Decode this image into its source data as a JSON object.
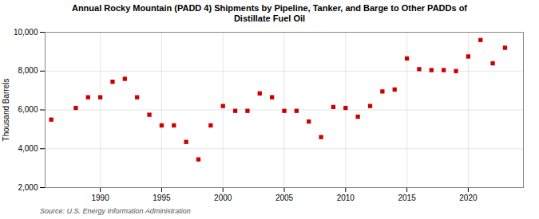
{
  "chart_data": {
    "type": "scatter",
    "title": "Annual Rocky Mountain (PADD 4) Shipments by Pipeline, Tanker, and Barge to Other PADDs of\nDistillate Fuel Oil",
    "ylabel": "Thousand Barrels",
    "source": "Source: U.S. Energy Information Administration",
    "x": [
      1986,
      1988,
      1989,
      1990,
      1991,
      1992,
      1993,
      1994,
      1995,
      1996,
      1997,
      1998,
      1999,
      2000,
      2001,
      2002,
      2003,
      2004,
      2005,
      2006,
      2007,
      2008,
      2009,
      2010,
      2011,
      2012,
      2013,
      2014,
      2015,
      2016,
      2017,
      2018,
      2019,
      2020,
      2021,
      2022,
      2023
    ],
    "values": [
      5500,
      6100,
      6650,
      6650,
      7450,
      7600,
      6650,
      5750,
      5200,
      5200,
      4350,
      3450,
      5200,
      6200,
      5950,
      5950,
      6850,
      6650,
      5950,
      5950,
      5400,
      4600,
      6150,
      6100,
      5650,
      6200,
      6950,
      7050,
      8650,
      8100,
      8050,
      8050,
      8000,
      8750,
      9600,
      8400,
      9200
    ],
    "color": "#cc0000",
    "marker": "square",
    "xlim": [
      1985.5,
      2024.5
    ],
    "xticks": [
      1990,
      1995,
      2000,
      2005,
      2010,
      2015,
      2020
    ],
    "ylim": [
      2000,
      10000
    ],
    "yticks": [
      {
        "value": 2000,
        "label": "2,000"
      },
      {
        "value": 4000,
        "label": "4,000"
      },
      {
        "value": 6000,
        "label": "6,000"
      },
      {
        "value": 8000,
        "label": "8,000"
      },
      {
        "value": 10000,
        "label": "10,000"
      }
    ],
    "grid": true
  }
}
